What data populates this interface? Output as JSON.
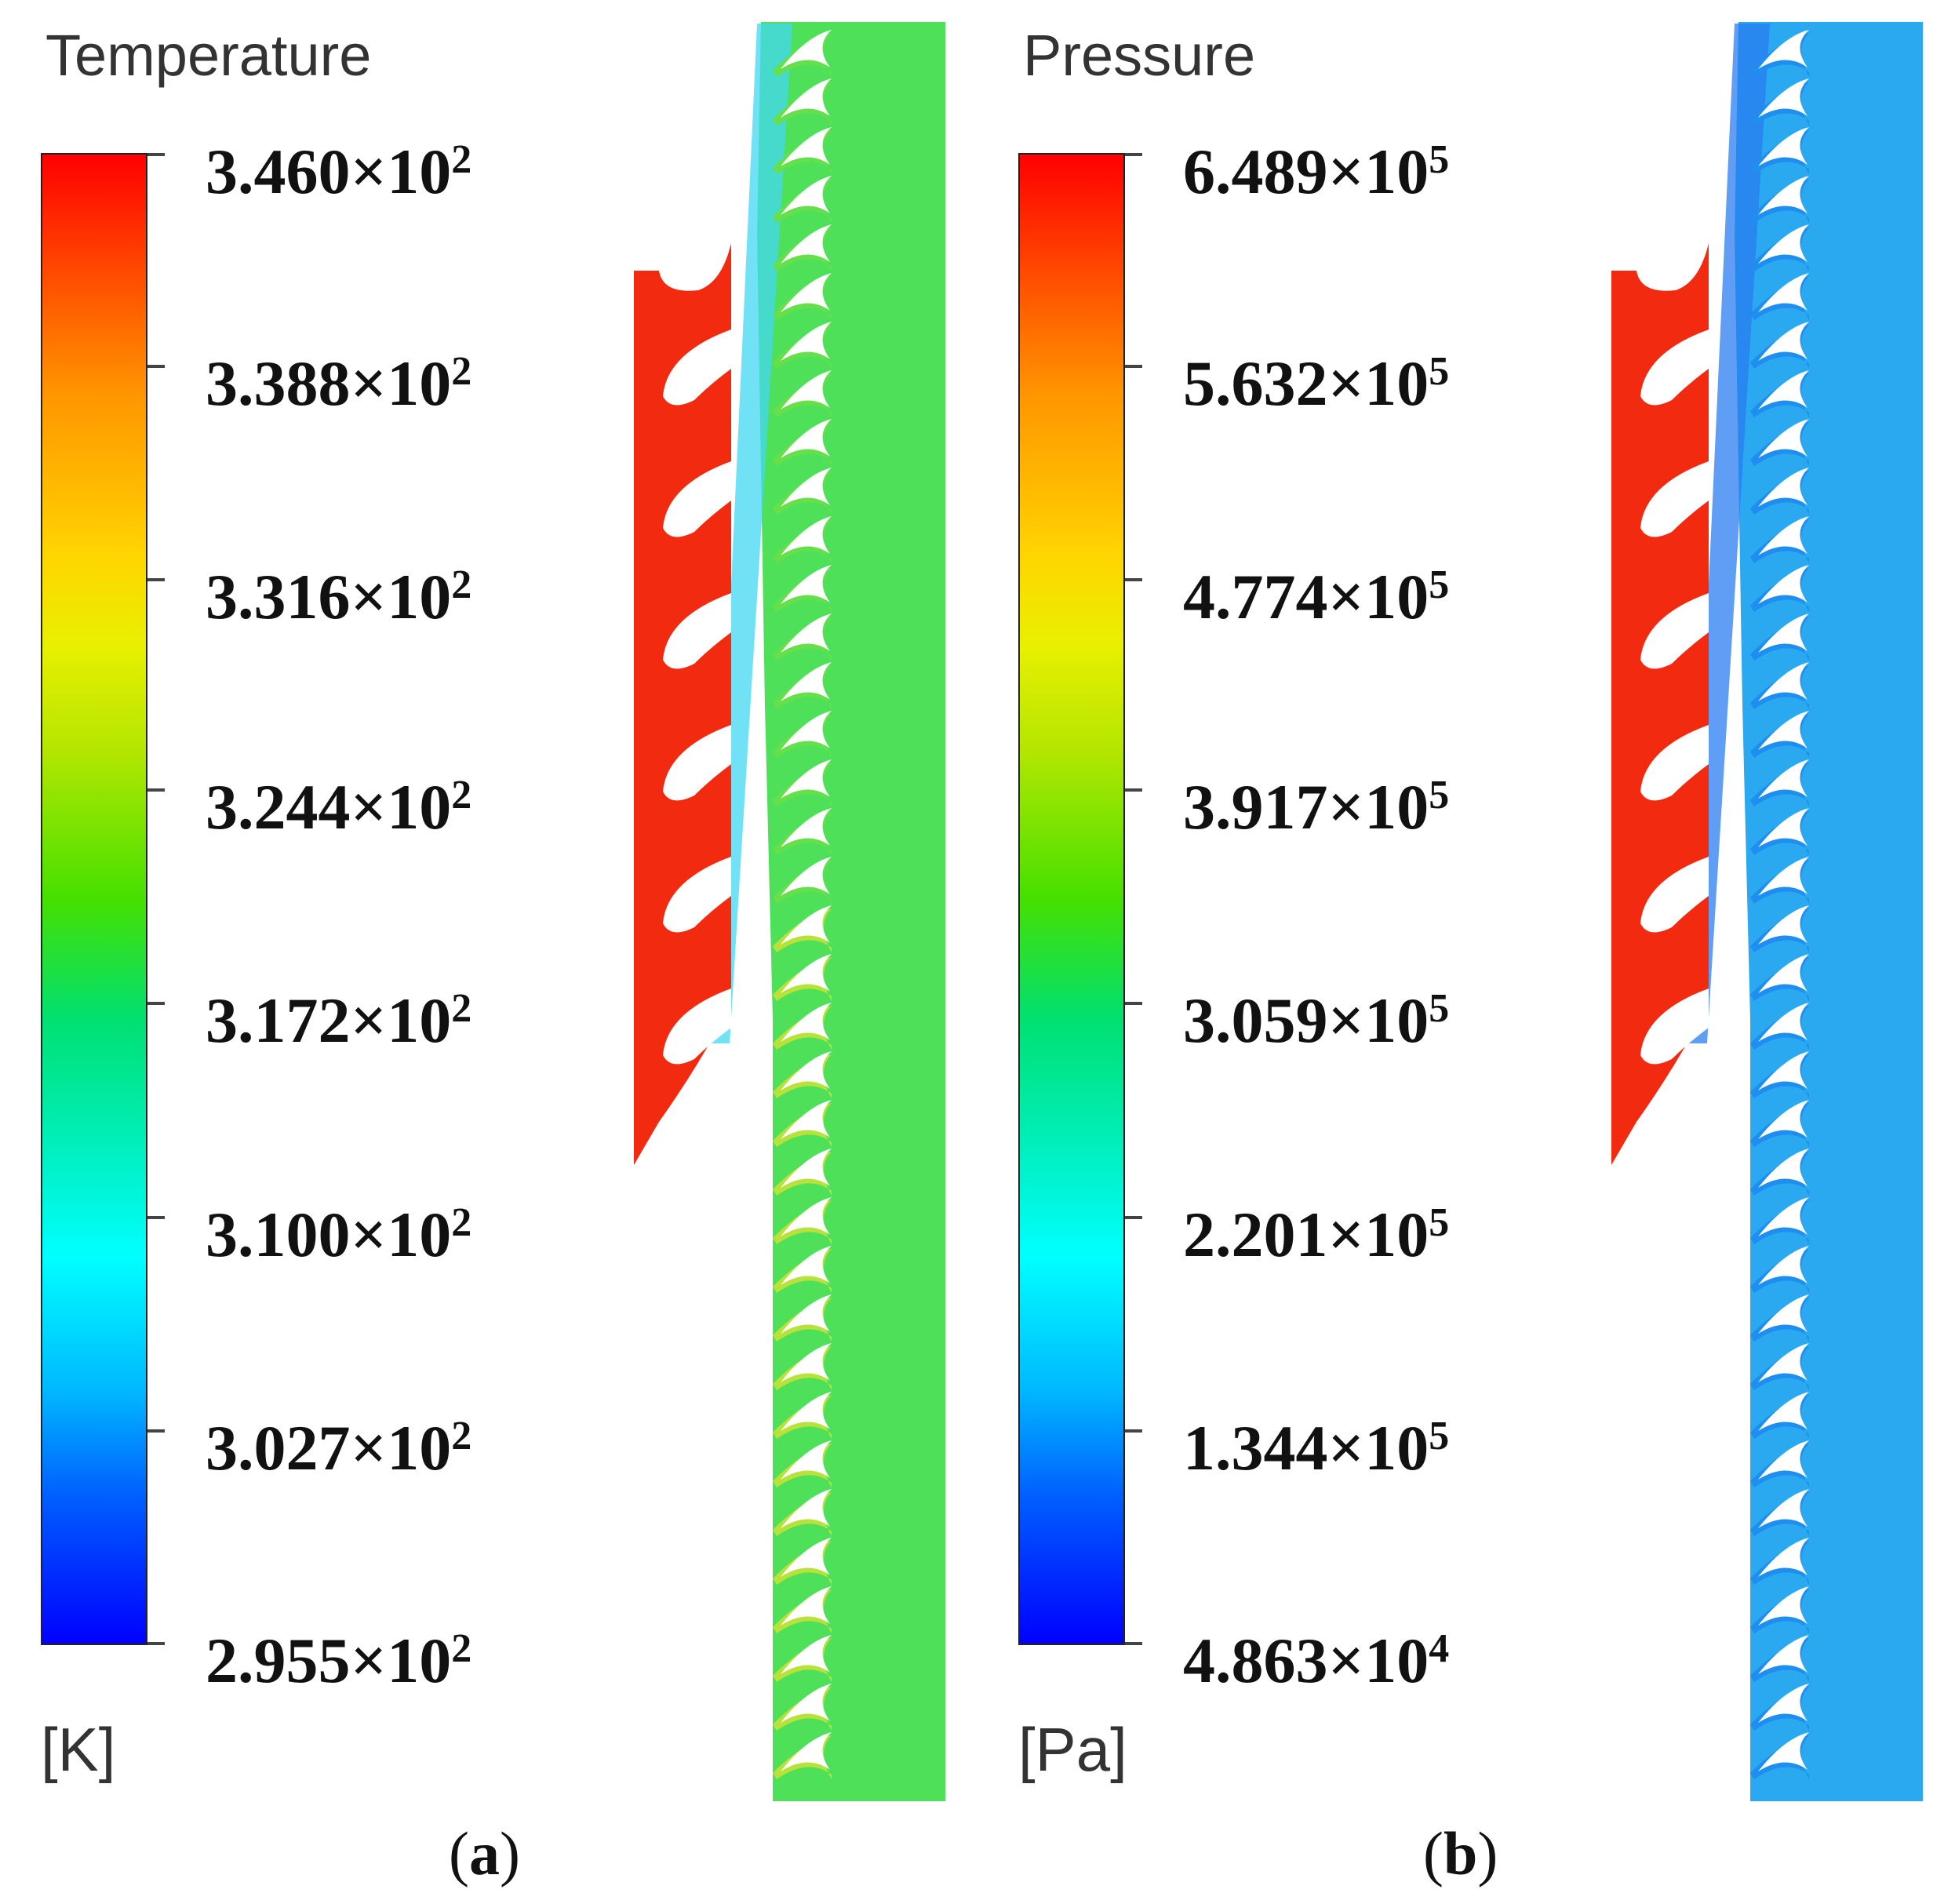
{
  "panels": [
    {
      "id": "a",
      "legend_title": "Temperature",
      "ticks": [
        {
          "mantissa": "3.460",
          "base": "×10",
          "exponent": "2"
        },
        {
          "mantissa": "3.388",
          "base": "×10",
          "exponent": "2"
        },
        {
          "mantissa": "3.316",
          "base": "×10",
          "exponent": "2"
        },
        {
          "mantissa": "3.244",
          "base": "×10",
          "exponent": "2"
        },
        {
          "mantissa": "3.172",
          "base": "×10",
          "exponent": "2"
        },
        {
          "mantissa": "3.100",
          "base": "×10",
          "exponent": "2"
        },
        {
          "mantissa": "3.027",
          "base": "×10",
          "exponent": "2"
        },
        {
          "mantissa": "2.955",
          "base": "×10",
          "exponent": "2"
        }
      ],
      "unit": "[K]",
      "caption_open": "(",
      "caption_letter": "a",
      "caption_close": ")",
      "field_colors": {
        "manifold": "#f22a10",
        "passage_fluid": "#4fe05a",
        "cool_streak": "#42d8f2",
        "blade_band": "#66e04a",
        "lower_blade_band": "#b8e23a"
      }
    },
    {
      "id": "b",
      "legend_title": "Pressure",
      "ticks": [
        {
          "mantissa": "6.489",
          "base": "×10",
          "exponent": "5"
        },
        {
          "mantissa": "5.632",
          "base": "×10",
          "exponent": "5"
        },
        {
          "mantissa": "4.774",
          "base": "×10",
          "exponent": "5"
        },
        {
          "mantissa": "3.917",
          "base": "×10",
          "exponent": "5"
        },
        {
          "mantissa": "3.059",
          "base": "×10",
          "exponent": "5"
        },
        {
          "mantissa": "2.201",
          "base": "×10",
          "exponent": "5"
        },
        {
          "mantissa": "1.344",
          "base": "×10",
          "exponent": "5"
        },
        {
          "mantissa": "4.863",
          "base": "×10",
          "exponent": "4"
        }
      ],
      "unit": "[Pa]",
      "caption_open": "(",
      "caption_letter": "b",
      "caption_close": ")",
      "field_colors": {
        "manifold": "#f22a10",
        "passage_fluid": "#2aa8f0",
        "cool_streak": "#2a7ef0",
        "blade_band": "#1e8ef0",
        "lower_blade_band": "#1e8ef0"
      }
    }
  ]
}
